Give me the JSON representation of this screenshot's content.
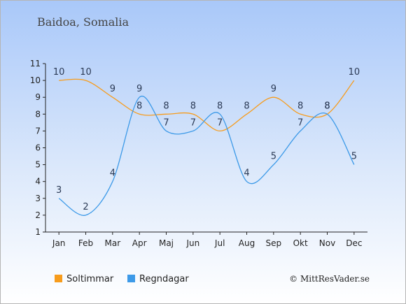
{
  "chart_data": {
    "type": "line",
    "title": "Baidoa, Somalia",
    "categories": [
      "Jan",
      "Feb",
      "Mar",
      "Apr",
      "Maj",
      "Jun",
      "Jul",
      "Aug",
      "Sep",
      "Okt",
      "Nov",
      "Dec"
    ],
    "ylim": [
      1,
      11
    ],
    "yticks": [
      1,
      2,
      3,
      4,
      5,
      6,
      7,
      8,
      9,
      10,
      11
    ],
    "grid": false,
    "legend_position": "bottom-left",
    "series": [
      {
        "name": "Soltimmar",
        "color": "#f79c1c",
        "values": [
          10,
          10,
          9,
          8,
          8,
          8,
          7,
          8,
          9,
          8,
          8,
          10
        ]
      },
      {
        "name": "Regndagar",
        "color": "#3d9ae8",
        "values": [
          3,
          2,
          4,
          9,
          7,
          7,
          8,
          4,
          5,
          7,
          8,
          5
        ]
      }
    ],
    "credit": "© MittResVader.se"
  }
}
